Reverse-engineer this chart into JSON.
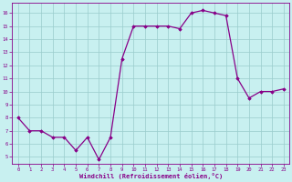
{
  "x": [
    0,
    1,
    2,
    3,
    4,
    5,
    6,
    7,
    8,
    9,
    10,
    11,
    12,
    13,
    14,
    15,
    16,
    17,
    18,
    19,
    20,
    21,
    22,
    23
  ],
  "y": [
    8.0,
    7.0,
    7.0,
    6.5,
    6.5,
    5.5,
    6.5,
    4.8,
    6.5,
    12.5,
    15.0,
    15.0,
    15.0,
    15.0,
    14.8,
    16.0,
    16.2,
    16.0,
    15.8,
    11.0,
    9.5,
    10.0,
    10.0,
    10.2
  ],
  "line_color": "#880088",
  "marker": "D",
  "markersize": 1.8,
  "linewidth": 0.9,
  "bg_color": "#c8f0f0",
  "grid_color": "#99cccc",
  "xlabel": "Windchill (Refroidissement éolien,°C)",
  "xlabel_color": "#880088",
  "tick_color": "#880088",
  "ylabel_ticks": [
    5,
    6,
    7,
    8,
    9,
    10,
    11,
    12,
    13,
    14,
    15,
    16
  ],
  "xlim": [
    -0.5,
    23.5
  ],
  "ylim": [
    4.5,
    16.8
  ],
  "xticks": [
    0,
    1,
    2,
    3,
    4,
    5,
    6,
    7,
    8,
    9,
    10,
    11,
    12,
    13,
    14,
    15,
    16,
    17,
    18,
    19,
    20,
    21,
    22,
    23
  ],
  "tick_fontsize": 4.0,
  "xlabel_fontsize": 5.0
}
